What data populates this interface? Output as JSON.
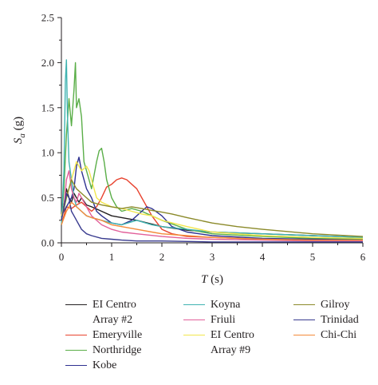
{
  "chart_data": {
    "type": "line",
    "title": "",
    "xlabel": "T (s)",
    "xlabel_var": "T",
    "xlabel_unit": " (s)",
    "ylabel_var": "S",
    "ylabel_sub": "a",
    "ylabel_unit": " (g)",
    "xlim": [
      0,
      6
    ],
    "ylim": [
      0,
      2.5
    ],
    "xticks": [
      0,
      1,
      2,
      3,
      4,
      5,
      6
    ],
    "xtick_labels": [
      "0",
      "1",
      "2",
      "3",
      "4",
      "5",
      "6"
    ],
    "yticks": [
      0,
      0.5,
      1,
      1.5,
      2,
      2.5
    ],
    "ytick_labels": [
      "0.0",
      "0.5",
      "1.0",
      "1.5",
      "2.0",
      "2.5"
    ],
    "grid": false,
    "legend_placement": "bottom",
    "series": [
      {
        "name": "EI Centro\nArray #2",
        "color": "#231f20",
        "x": [
          0,
          0.05,
          0.1,
          0.15,
          0.2,
          0.25,
          0.3,
          0.35,
          0.4,
          0.5,
          0.6,
          0.8,
          1.0,
          1.2,
          1.5,
          2.0,
          2.5,
          3.0,
          3.5,
          4.0,
          4.5,
          5.0,
          5.5,
          6.0
        ],
        "y": [
          0.25,
          0.42,
          0.6,
          0.5,
          0.45,
          0.55,
          0.5,
          0.45,
          0.5,
          0.42,
          0.4,
          0.35,
          0.3,
          0.28,
          0.25,
          0.18,
          0.14,
          0.12,
          0.11,
          0.1,
          0.09,
          0.08,
          0.07,
          0.06
        ]
      },
      {
        "name": "Emeryville",
        "color": "#e8432f",
        "x": [
          0,
          0.05,
          0.1,
          0.2,
          0.3,
          0.4,
          0.5,
          0.6,
          0.7,
          0.8,
          0.9,
          1.0,
          1.1,
          1.2,
          1.3,
          1.4,
          1.5,
          1.6,
          1.7,
          1.8,
          2.0,
          2.2,
          2.5,
          3.0,
          4.0,
          5.0,
          6.0
        ],
        "y": [
          0.2,
          0.3,
          0.4,
          0.38,
          0.42,
          0.45,
          0.4,
          0.35,
          0.4,
          0.5,
          0.62,
          0.65,
          0.7,
          0.72,
          0.7,
          0.65,
          0.6,
          0.5,
          0.4,
          0.3,
          0.15,
          0.1,
          0.07,
          0.06,
          0.04,
          0.03,
          0.03
        ]
      },
      {
        "name": "Northridge",
        "color": "#5aae48",
        "x": [
          0,
          0.05,
          0.1,
          0.15,
          0.2,
          0.25,
          0.28,
          0.3,
          0.35,
          0.4,
          0.45,
          0.5,
          0.6,
          0.7,
          0.75,
          0.8,
          0.85,
          0.9,
          1.0,
          1.1,
          1.2,
          1.4,
          1.6,
          1.8,
          2.0,
          2.5,
          3.0,
          4.0,
          5.0,
          6.0
        ],
        "y": [
          0.25,
          0.6,
          1.2,
          1.6,
          1.3,
          1.7,
          2.0,
          1.5,
          1.6,
          1.4,
          0.9,
          0.8,
          0.6,
          0.9,
          1.02,
          1.05,
          0.9,
          0.7,
          0.5,
          0.4,
          0.35,
          0.38,
          0.35,
          0.3,
          0.25,
          0.15,
          0.1,
          0.07,
          0.05,
          0.04
        ]
      },
      {
        "name": "Kobe",
        "color": "#2e3190",
        "x": [
          0,
          0.05,
          0.1,
          0.15,
          0.2,
          0.25,
          0.3,
          0.35,
          0.4,
          0.5,
          0.6,
          0.7,
          0.8,
          1.0,
          1.2,
          1.4,
          1.6,
          1.7,
          1.8,
          2.0,
          2.2,
          2.5,
          3.0,
          4.0,
          5.0,
          6.0
        ],
        "y": [
          0.3,
          0.35,
          0.4,
          0.45,
          0.5,
          0.6,
          0.85,
          0.95,
          0.8,
          0.6,
          0.5,
          0.35,
          0.3,
          0.22,
          0.2,
          0.25,
          0.35,
          0.4,
          0.38,
          0.3,
          0.18,
          0.12,
          0.08,
          0.05,
          0.04,
          0.03
        ]
      },
      {
        "name": "Koyna",
        "color": "#3fb3b1",
        "x": [
          0,
          0.05,
          0.08,
          0.1,
          0.12,
          0.15,
          0.2,
          0.25,
          0.3,
          0.4,
          0.5,
          0.6,
          0.8,
          1.0,
          1.2,
          1.5,
          1.8,
          2.0,
          2.5,
          3.0,
          4.0,
          5.0,
          6.0
        ],
        "y": [
          0.2,
          0.8,
          1.8,
          2.03,
          1.4,
          0.9,
          0.7,
          0.5,
          0.4,
          0.35,
          0.3,
          0.28,
          0.25,
          0.22,
          0.2,
          0.25,
          0.2,
          0.18,
          0.15,
          0.12,
          0.1,
          0.08,
          0.06
        ]
      },
      {
        "name": "Friuli",
        "color": "#e2609a",
        "x": [
          0,
          0.05,
          0.1,
          0.15,
          0.2,
          0.25,
          0.3,
          0.35,
          0.4,
          0.5,
          0.6,
          0.8,
          1.0,
          1.2,
          1.5,
          2.0,
          2.5,
          3.0,
          4.0,
          5.0,
          6.0
        ],
        "y": [
          0.25,
          0.4,
          0.7,
          0.8,
          0.6,
          0.5,
          0.45,
          0.55,
          0.5,
          0.4,
          0.3,
          0.2,
          0.15,
          0.12,
          0.1,
          0.07,
          0.05,
          0.04,
          0.03,
          0.02,
          0.02
        ]
      },
      {
        "name": "EI Centro\nArray #9",
        "color": "#f2e64d",
        "x": [
          0,
          0.1,
          0.2,
          0.3,
          0.4,
          0.5,
          0.55,
          0.6,
          0.7,
          0.8,
          1.0,
          1.2,
          1.4,
          1.6,
          1.8,
          2.0,
          2.5,
          3.0,
          4.0,
          5.0,
          6.0
        ],
        "y": [
          0.3,
          0.5,
          0.7,
          0.9,
          0.8,
          0.85,
          0.8,
          0.7,
          0.5,
          0.45,
          0.4,
          0.38,
          0.35,
          0.32,
          0.3,
          0.25,
          0.18,
          0.12,
          0.08,
          0.06,
          0.05
        ]
      },
      {
        "name": "Gilroy",
        "color": "#8b8a2a",
        "x": [
          0,
          0.1,
          0.2,
          0.3,
          0.4,
          0.5,
          0.6,
          0.8,
          1.0,
          1.2,
          1.4,
          1.6,
          1.8,
          2.0,
          2.2,
          2.5,
          3.0,
          3.5,
          4.0,
          5.0,
          6.0
        ],
        "y": [
          0.25,
          0.5,
          0.7,
          0.6,
          0.55,
          0.5,
          0.45,
          0.42,
          0.4,
          0.38,
          0.4,
          0.38,
          0.36,
          0.34,
          0.32,
          0.28,
          0.22,
          0.18,
          0.15,
          0.1,
          0.07
        ]
      },
      {
        "name": "Trinidad",
        "color": "#393b8f",
        "x": [
          0,
          0.05,
          0.1,
          0.15,
          0.2,
          0.25,
          0.3,
          0.35,
          0.4,
          0.5,
          0.6,
          0.8,
          1.0,
          1.2,
          1.5,
          2.0,
          3.0,
          4.0,
          5.0,
          6.0
        ],
        "y": [
          0.25,
          0.4,
          0.55,
          0.5,
          0.35,
          0.3,
          0.25,
          0.2,
          0.15,
          0.1,
          0.08,
          0.05,
          0.04,
          0.03,
          0.02,
          0.02,
          0.01,
          0.01,
          0.01,
          0.01
        ]
      },
      {
        "name": "Chi-Chi",
        "color": "#f48a3a",
        "x": [
          0,
          0.1,
          0.2,
          0.3,
          0.4,
          0.5,
          0.6,
          0.8,
          1.0,
          1.2,
          1.5,
          1.8,
          2.0,
          2.5,
          3.0,
          4.0,
          5.0,
          6.0
        ],
        "y": [
          0.2,
          0.35,
          0.45,
          0.4,
          0.35,
          0.3,
          0.28,
          0.25,
          0.2,
          0.18,
          0.15,
          0.12,
          0.1,
          0.08,
          0.06,
          0.04,
          0.03,
          0.03
        ]
      }
    ]
  }
}
